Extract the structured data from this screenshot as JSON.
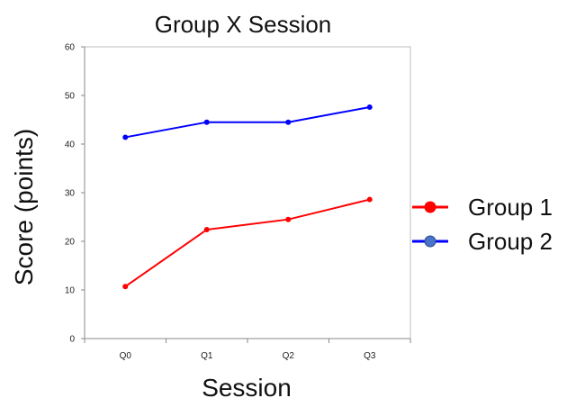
{
  "chart_data": {
    "type": "line",
    "title": "Group X Session",
    "xlabel": "Session",
    "ylabel": "Score (points)",
    "categories": [
      "Q0",
      "Q1",
      "Q2",
      "Q3"
    ],
    "ylim": [
      0,
      60
    ],
    "yticks": [
      0,
      10,
      20,
      30,
      40,
      50,
      60
    ],
    "grid": false,
    "legend_position": "right",
    "series": [
      {
        "name": "Group 1",
        "color": "#ff0000",
        "marker_color": "#ff0000",
        "values": [
          10.7,
          22.4,
          24.5,
          28.6
        ]
      },
      {
        "name": "Group 2",
        "color": "#0000ff",
        "marker_color": "#4a74c9",
        "values": [
          41.4,
          44.5,
          44.5,
          47.6
        ]
      }
    ]
  }
}
